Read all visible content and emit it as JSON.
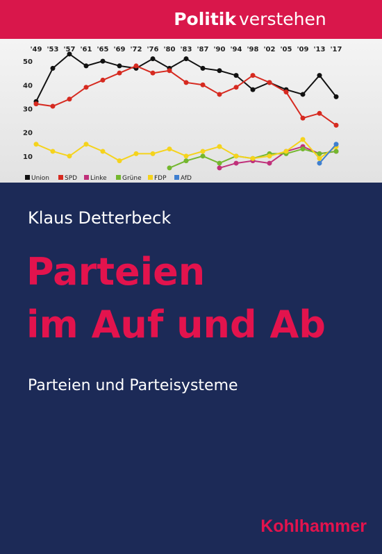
{
  "series_label": {
    "bold": "Politik",
    "light": "verstehen"
  },
  "author": "Klaus Detterbeck",
  "title_lines": [
    "Parteien",
    "im Auf und Ab"
  ],
  "subtitle": "Parteien und Parteisysteme",
  "publisher": "Kohlhammer",
  "chart_data": {
    "type": "line",
    "categories": [
      "'49",
      "'53",
      "'57",
      "'61",
      "'65",
      "'69",
      "'72",
      "'76",
      "'80",
      "'83",
      "'87",
      "'90",
      "'94",
      "'98",
      "'02",
      "'05",
      "'09",
      "'13",
      "'17"
    ],
    "ylim": [
      0,
      55
    ],
    "yticks": [
      10,
      20,
      30,
      40,
      50
    ],
    "series": [
      {
        "name": "Union",
        "color": "#111111",
        "values": [
          33,
          47,
          53,
          48,
          50,
          48,
          47,
          51,
          47,
          51,
          47,
          46,
          44,
          38,
          41,
          38,
          36,
          44,
          35
        ]
      },
      {
        "name": "SPD",
        "color": "#d62a20",
        "values": [
          32,
          31,
          34,
          39,
          42,
          45,
          48,
          45,
          46,
          41,
          40,
          36,
          39,
          44,
          41,
          37,
          26,
          28,
          23
        ]
      },
      {
        "name": "Linke",
        "color": "#c0307a",
        "values": [
          null,
          null,
          null,
          null,
          null,
          null,
          null,
          null,
          null,
          null,
          null,
          5,
          7,
          8,
          7,
          12,
          14,
          11,
          12
        ]
      },
      {
        "name": "Grüne",
        "color": "#74b72e",
        "values": [
          null,
          null,
          null,
          null,
          null,
          null,
          null,
          null,
          5,
          8,
          10,
          7,
          10,
          9,
          11,
          11,
          13,
          11,
          12
        ]
      },
      {
        "name": "FDP",
        "color": "#f5d31c",
        "values": [
          15,
          12,
          10,
          15,
          12,
          8,
          11,
          11,
          13,
          10,
          12,
          14,
          10,
          9,
          10,
          12,
          17,
          9,
          14
        ]
      },
      {
        "name": "AfD",
        "color": "#3f7fd0",
        "values": [
          null,
          null,
          null,
          null,
          null,
          null,
          null,
          null,
          null,
          null,
          null,
          null,
          null,
          null,
          null,
          null,
          null,
          7,
          15
        ]
      }
    ]
  }
}
